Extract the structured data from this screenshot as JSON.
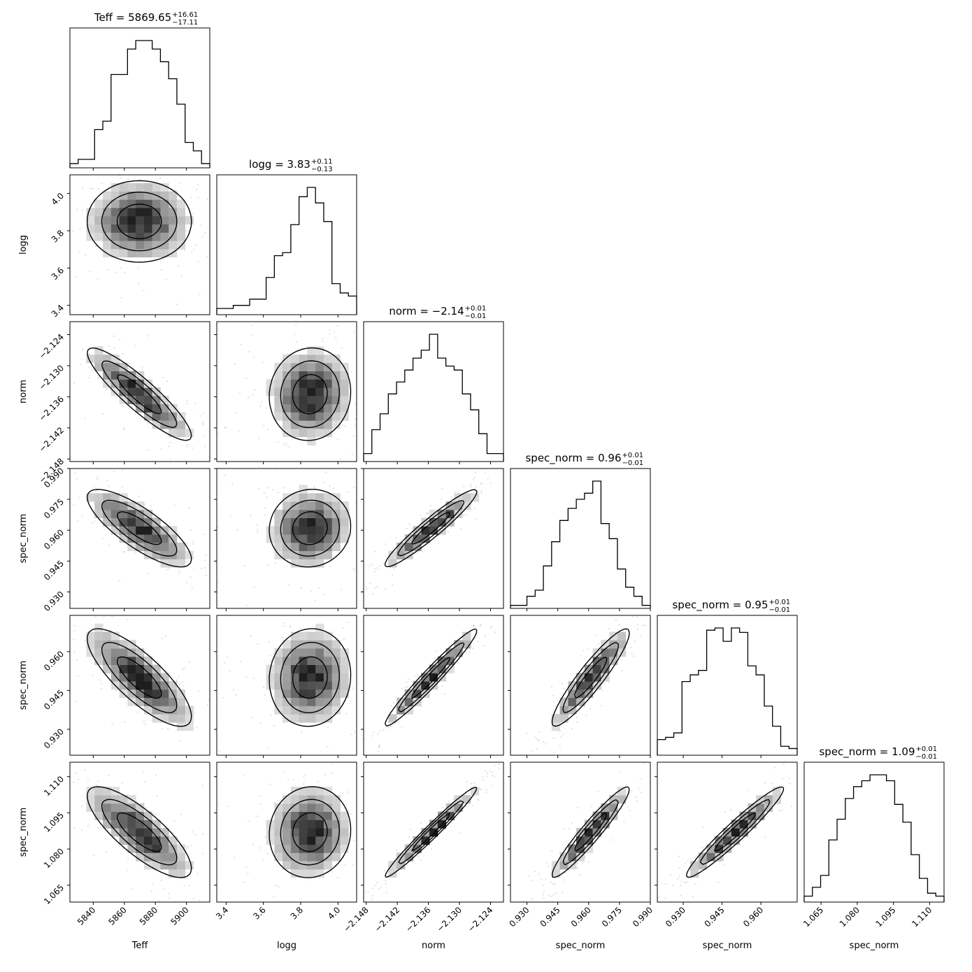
{
  "chart_data": {
    "type": "corner",
    "parameters": [
      {
        "name": "Teff",
        "title": "Teff = 5869.65",
        "sup": "+16.61",
        "sub": "−17.11",
        "range": [
          5825,
          5915
        ],
        "ticks": [
          5840,
          5860,
          5880,
          5900
        ],
        "tick_labels": [
          "5840",
          "5860",
          "5880",
          "5900"
        ],
        "xlabel": "Teff",
        "center": 5869.65,
        "sd": 16.9
      },
      {
        "name": "logg",
        "title": "logg = 3.83",
        "sup": "+0.11",
        "sub": "−0.13",
        "range": [
          3.35,
          4.1
        ],
        "ticks": [
          3.4,
          3.6,
          3.8,
          4.0
        ],
        "tick_labels": [
          "3.4",
          "3.6",
          "3.8",
          "4.0"
        ],
        "xlabel": "logg",
        "center": 3.85,
        "sd": 0.11
      },
      {
        "name": "norm",
        "title": "norm = −2.14",
        "sup": "+0.01",
        "sub": "−0.01",
        "range": [
          -2.1485,
          -2.1215
        ],
        "ticks": [
          -2.148,
          -2.142,
          -2.136,
          -2.13,
          -2.124
        ],
        "tick_labels": [
          "−2.148",
          "−2.142",
          "−2.136",
          "−2.130",
          "−2.124"
        ],
        "xlabel": "norm",
        "center": -2.1355,
        "sd": 0.0045
      },
      {
        "name": "spec_norm",
        "title": "spec_norm = 0.96",
        "sup": "+0.01",
        "sub": "−0.01",
        "range": [
          0.922,
          0.99
        ],
        "ticks": [
          0.93,
          0.945,
          0.96,
          0.975,
          0.99
        ],
        "tick_labels": [
          "0.930",
          "0.945",
          "0.960",
          "0.975",
          "0.990"
        ],
        "xlabel": "spec_norm",
        "center": 0.961,
        "sd": 0.0095
      },
      {
        "name": "spec_norm",
        "title": "spec_norm = 0.95",
        "sup": "+0.01",
        "sub": "−0.01",
        "range": [
          0.92,
          0.974
        ],
        "ticks": [
          0.93,
          0.945,
          0.96
        ],
        "tick_labels": [
          "0.930",
          "0.945",
          "0.960"
        ],
        "xlabel": "spec_norm",
        "center": 0.95,
        "sd": 0.0095
      },
      {
        "name": "spec_norm",
        "title": "spec_norm = 1.09",
        "sup": "+0.01",
        "sub": "−0.01",
        "range": [
          1.058,
          1.116
        ],
        "ticks": [
          1.065,
          1.08,
          1.095,
          1.11
        ],
        "tick_labels": [
          "1.065",
          "1.080",
          "1.095",
          "1.110"
        ],
        "xlabel": "spec_norm",
        "center": 1.087,
        "sd": 0.0095
      }
    ],
    "y_axis_labels": [
      "logg",
      "norm",
      "spec_norm",
      "spec_norm",
      "spec_norm"
    ],
    "histograms": [
      [
        1,
        2,
        2,
        9,
        11,
        22,
        22,
        28,
        30,
        30,
        28,
        25,
        21,
        15,
        6,
        4,
        1
      ],
      [
        2,
        2,
        3,
        3,
        5,
        5,
        12,
        19,
        20,
        29,
        38,
        41,
        36,
        30,
        10,
        7,
        6
      ],
      [
        2,
        8,
        12,
        17,
        20,
        23,
        26,
        28,
        32,
        26,
        24,
        23,
        17,
        13,
        7,
        2,
        2
      ],
      [
        1,
        1,
        4,
        6,
        14,
        22,
        29,
        33,
        36,
        38,
        42,
        28,
        23,
        13,
        7,
        4,
        1
      ],
      [
        7,
        8,
        10,
        33,
        36,
        38,
        56,
        57,
        51,
        57,
        55,
        40,
        36,
        22,
        13,
        4,
        3
      ],
      [
        2,
        5,
        9,
        21,
        28,
        35,
        39,
        41,
        43,
        43,
        41,
        33,
        27,
        16,
        8,
        3,
        2
      ]
    ],
    "correlations": [
      [
        1.0,
        0.0,
        -0.9,
        -0.8,
        -0.8,
        -0.8
      ],
      [
        0.0,
        1.0,
        0.05,
        0.05,
        0.05,
        0.05
      ],
      [
        -0.9,
        0.05,
        1.0,
        0.95,
        0.97,
        0.98
      ],
      [
        -0.8,
        0.05,
        0.95,
        1.0,
        0.92,
        0.95
      ],
      [
        -0.8,
        0.05,
        0.97,
        0.92,
        1.0,
        0.96
      ],
      [
        -0.8,
        0.05,
        0.98,
        0.95,
        0.96,
        1.0
      ]
    ],
    "n_bins": 17,
    "contour_levels": 3
  }
}
